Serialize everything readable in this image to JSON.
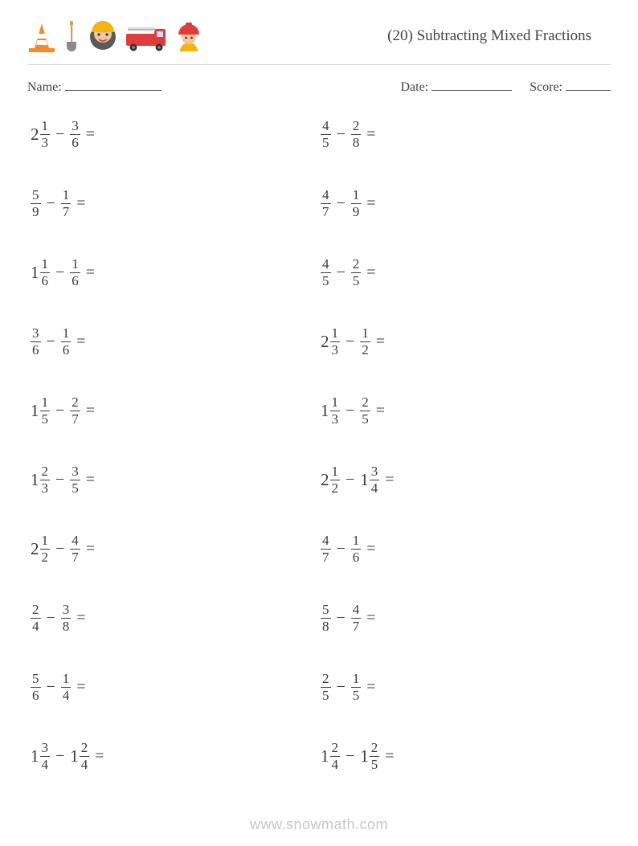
{
  "header": {
    "title": "(20) Subtracting Mixed Fractions"
  },
  "info": {
    "name_label": "Name:",
    "date_label": "Date:",
    "score_label": "Score:"
  },
  "colors": {
    "text": "#3a3a3a",
    "divider": "#d9d9d9",
    "footer": "#c7c7c7",
    "cone_orange": "#f28c28",
    "shovel_handle": "#cfa15a",
    "shovel_head": "#8a8a8a",
    "face_skin": "#f2c59b",
    "beard": "#5a5a5a",
    "truck_red": "#e23b3b",
    "helmet_red": "#e23b3b",
    "helmet_yellow": "#f2b50c"
  },
  "footer": {
    "text": "www.snowmath.com"
  },
  "problems_left": [
    {
      "a_whole": "2",
      "a_num": "1",
      "a_den": "3",
      "b_whole": "",
      "b_num": "3",
      "b_den": "6"
    },
    {
      "a_whole": "",
      "a_num": "5",
      "a_den": "9",
      "b_whole": "",
      "b_num": "1",
      "b_den": "7"
    },
    {
      "a_whole": "1",
      "a_num": "1",
      "a_den": "6",
      "b_whole": "",
      "b_num": "1",
      "b_den": "6"
    },
    {
      "a_whole": "",
      "a_num": "3",
      "a_den": "6",
      "b_whole": "",
      "b_num": "1",
      "b_den": "6"
    },
    {
      "a_whole": "1",
      "a_num": "1",
      "a_den": "5",
      "b_whole": "",
      "b_num": "2",
      "b_den": "7"
    },
    {
      "a_whole": "1",
      "a_num": "2",
      "a_den": "3",
      "b_whole": "",
      "b_num": "3",
      "b_den": "5"
    },
    {
      "a_whole": "2",
      "a_num": "1",
      "a_den": "2",
      "b_whole": "",
      "b_num": "4",
      "b_den": "7"
    },
    {
      "a_whole": "",
      "a_num": "2",
      "a_den": "4",
      "b_whole": "",
      "b_num": "3",
      "b_den": "8"
    },
    {
      "a_whole": "",
      "a_num": "5",
      "a_den": "6",
      "b_whole": "",
      "b_num": "1",
      "b_den": "4"
    },
    {
      "a_whole": "1",
      "a_num": "3",
      "a_den": "4",
      "b_whole": "1",
      "b_num": "2",
      "b_den": "4"
    }
  ],
  "problems_right": [
    {
      "a_whole": "",
      "a_num": "4",
      "a_den": "5",
      "b_whole": "",
      "b_num": "2",
      "b_den": "8"
    },
    {
      "a_whole": "",
      "a_num": "4",
      "a_den": "7",
      "b_whole": "",
      "b_num": "1",
      "b_den": "9"
    },
    {
      "a_whole": "",
      "a_num": "4",
      "a_den": "5",
      "b_whole": "",
      "b_num": "2",
      "b_den": "5"
    },
    {
      "a_whole": "2",
      "a_num": "1",
      "a_den": "3",
      "b_whole": "",
      "b_num": "1",
      "b_den": "2"
    },
    {
      "a_whole": "1",
      "a_num": "1",
      "a_den": "3",
      "b_whole": "",
      "b_num": "2",
      "b_den": "5"
    },
    {
      "a_whole": "2",
      "a_num": "1",
      "a_den": "2",
      "b_whole": "1",
      "b_num": "3",
      "b_den": "4"
    },
    {
      "a_whole": "",
      "a_num": "4",
      "a_den": "7",
      "b_whole": "",
      "b_num": "1",
      "b_den": "6"
    },
    {
      "a_whole": "",
      "a_num": "5",
      "a_den": "8",
      "b_whole": "",
      "b_num": "4",
      "b_den": "7"
    },
    {
      "a_whole": "",
      "a_num": "2",
      "a_den": "5",
      "b_whole": "",
      "b_num": "1",
      "b_den": "5"
    },
    {
      "a_whole": "1",
      "a_num": "2",
      "a_den": "4",
      "b_whole": "1",
      "b_num": "2",
      "b_den": "5"
    }
  ],
  "symbols": {
    "minus": "−",
    "equals": "="
  }
}
